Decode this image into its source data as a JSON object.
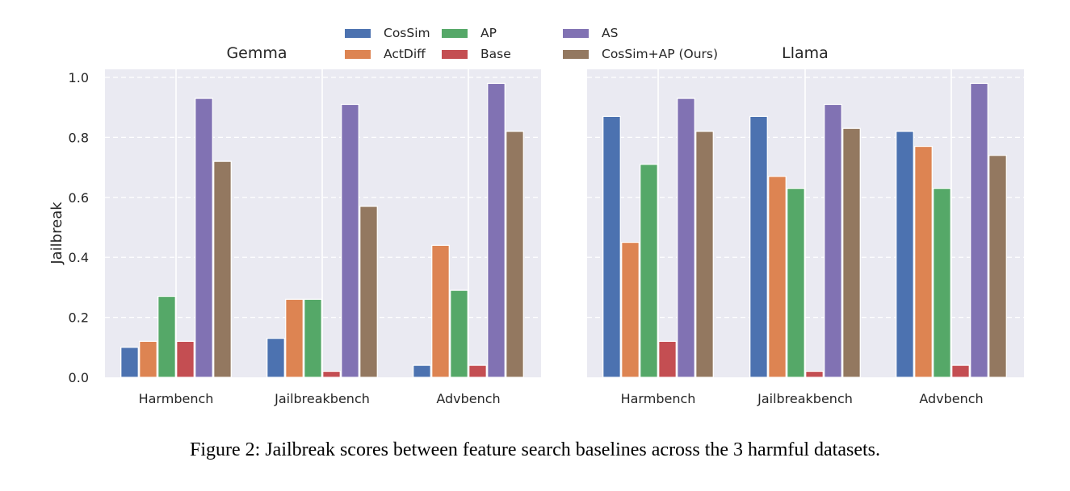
{
  "caption": "Figure 2: Jailbreak scores between feature search baselines across the 3 harmful datasets.",
  "legend": {
    "placement": "top-center",
    "items": [
      {
        "label": "CosSim",
        "color": "#4c72b0"
      },
      {
        "label": "ActDiff",
        "color": "#dd8452"
      },
      {
        "label": "AP",
        "color": "#55a868"
      },
      {
        "label": "Base",
        "color": "#c44e52"
      },
      {
        "label": "AS",
        "color": "#8172b3"
      },
      {
        "label": "CosSim+AP (Ours)",
        "color": "#937860"
      }
    ]
  },
  "chart_data": [
    {
      "type": "bar",
      "title": "Gemma",
      "xlabel": "",
      "ylabel": "Jailbreak",
      "ylim": [
        0,
        1.0
      ],
      "yticks": [
        "0.0",
        "0.2",
        "0.4",
        "0.6",
        "0.8",
        "1.0"
      ],
      "grid": true,
      "categories": [
        "Harmbench",
        "Jailbreakbench",
        "Advbench"
      ],
      "series": [
        {
          "name": "CosSim",
          "values": [
            0.1,
            0.13,
            0.04
          ]
        },
        {
          "name": "ActDiff",
          "values": [
            0.12,
            0.26,
            0.44
          ]
        },
        {
          "name": "AP",
          "values": [
            0.27,
            0.26,
            0.29
          ]
        },
        {
          "name": "Base",
          "values": [
            0.12,
            0.02,
            0.04
          ]
        },
        {
          "name": "AS",
          "values": [
            0.93,
            0.91,
            0.98
          ]
        },
        {
          "name": "CosSim+AP (Ours)",
          "values": [
            0.72,
            0.57,
            0.82
          ]
        }
      ]
    },
    {
      "type": "bar",
      "title": "Llama",
      "xlabel": "",
      "ylabel": "",
      "ylim": [
        0,
        1.0
      ],
      "yticks": [],
      "grid": true,
      "categories": [
        "Harmbench",
        "Jailbreakbench",
        "Advbench"
      ],
      "series": [
        {
          "name": "CosSim",
          "values": [
            0.87,
            0.87,
            0.82
          ]
        },
        {
          "name": "ActDiff",
          "values": [
            0.45,
            0.67,
            0.77
          ]
        },
        {
          "name": "AP",
          "values": [
            0.71,
            0.63,
            0.63
          ]
        },
        {
          "name": "Base",
          "values": [
            0.12,
            0.02,
            0.04
          ]
        },
        {
          "name": "AS",
          "values": [
            0.93,
            0.91,
            0.98
          ]
        },
        {
          "name": "CosSim+AP (Ours)",
          "values": [
            0.82,
            0.83,
            0.74
          ]
        }
      ]
    }
  ]
}
